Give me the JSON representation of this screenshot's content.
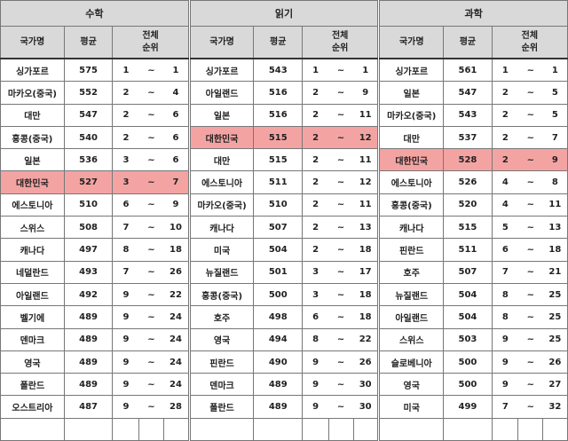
{
  "headers": {
    "country": "국가명",
    "mean": "평균",
    "rank_line1": "전체",
    "rank_line2": "순위"
  },
  "highlight_color": "#f4a3a3",
  "highlight_country": "대한민국",
  "tables": [
    {
      "subject": "수학",
      "rows": [
        [
          "싱가포르",
          "575",
          "1",
          "~",
          "1"
        ],
        [
          "마카오(중국)",
          "552",
          "2",
          "~",
          "4"
        ],
        [
          "대만",
          "547",
          "2",
          "~",
          "6"
        ],
        [
          "홍콩(중국)",
          "540",
          "2",
          "~",
          "6"
        ],
        [
          "일본",
          "536",
          "3",
          "~",
          "6"
        ],
        [
          "대한민국",
          "527",
          "3",
          "~",
          "7"
        ],
        [
          "에스토니아",
          "510",
          "6",
          "~",
          "9"
        ],
        [
          "스위스",
          "508",
          "7",
          "~",
          "10"
        ],
        [
          "캐나다",
          "497",
          "8",
          "~",
          "18"
        ],
        [
          "네덜란드",
          "493",
          "7",
          "~",
          "26"
        ],
        [
          "아일랜드",
          "492",
          "9",
          "~",
          "22"
        ],
        [
          "벨기에",
          "489",
          "9",
          "~",
          "24"
        ],
        [
          "덴마크",
          "489",
          "9",
          "~",
          "24"
        ],
        [
          "영국",
          "489",
          "9",
          "~",
          "24"
        ],
        [
          "폴란드",
          "489",
          "9",
          "~",
          "24"
        ],
        [
          "오스트리아",
          "487",
          "9",
          "~",
          "28"
        ]
      ]
    },
    {
      "subject": "읽기",
      "rows": [
        [
          "싱가포르",
          "543",
          "1",
          "~",
          "1"
        ],
        [
          "아일랜드",
          "516",
          "2",
          "~",
          "9"
        ],
        [
          "일본",
          "516",
          "2",
          "~",
          "11"
        ],
        [
          "대한민국",
          "515",
          "2",
          "~",
          "12"
        ],
        [
          "대만",
          "515",
          "2",
          "~",
          "11"
        ],
        [
          "에스토니아",
          "511",
          "2",
          "~",
          "12"
        ],
        [
          "마카오(중국)",
          "510",
          "2",
          "~",
          "11"
        ],
        [
          "캐나다",
          "507",
          "2",
          "~",
          "13"
        ],
        [
          "미국",
          "504",
          "2",
          "~",
          "18"
        ],
        [
          "뉴질랜드",
          "501",
          "3",
          "~",
          "17"
        ],
        [
          "홍콩(중국)",
          "500",
          "3",
          "~",
          "18"
        ],
        [
          "호주",
          "498",
          "6",
          "~",
          "18"
        ],
        [
          "영국",
          "494",
          "8",
          "~",
          "22"
        ],
        [
          "핀란드",
          "490",
          "9",
          "~",
          "26"
        ],
        [
          "덴마크",
          "489",
          "9",
          "~",
          "30"
        ],
        [
          "폴란드",
          "489",
          "9",
          "~",
          "30"
        ]
      ]
    },
    {
      "subject": "과학",
      "rows": [
        [
          "싱가포르",
          "561",
          "1",
          "~",
          "1"
        ],
        [
          "일본",
          "547",
          "2",
          "~",
          "5"
        ],
        [
          "마카오(중국)",
          "543",
          "2",
          "~",
          "5"
        ],
        [
          "대만",
          "537",
          "2",
          "~",
          "7"
        ],
        [
          "대한민국",
          "528",
          "2",
          "~",
          "9"
        ],
        [
          "에스토니아",
          "526",
          "4",
          "~",
          "8"
        ],
        [
          "홍콩(중국)",
          "520",
          "4",
          "~",
          "11"
        ],
        [
          "캐나다",
          "515",
          "5",
          "~",
          "13"
        ],
        [
          "핀란드",
          "511",
          "6",
          "~",
          "18"
        ],
        [
          "호주",
          "507",
          "7",
          "~",
          "21"
        ],
        [
          "뉴질랜드",
          "504",
          "8",
          "~",
          "25"
        ],
        [
          "아일랜드",
          "504",
          "8",
          "~",
          "25"
        ],
        [
          "스위스",
          "503",
          "9",
          "~",
          "25"
        ],
        [
          "슬로베니아",
          "500",
          "9",
          "~",
          "26"
        ],
        [
          "영국",
          "500",
          "9",
          "~",
          "27"
        ],
        [
          "미국",
          "499",
          "7",
          "~",
          "32"
        ]
      ]
    }
  ]
}
